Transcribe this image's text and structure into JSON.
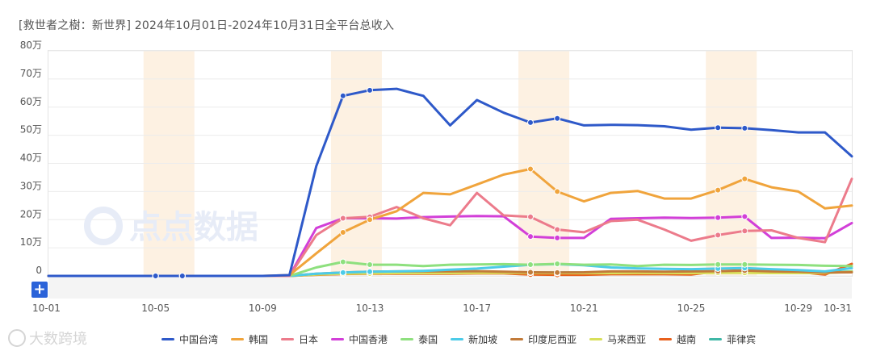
{
  "title": "[救世者之樹：新世界] 2024年10月01日-2024年10月31日全平台总收入",
  "watermark_center": "点点数据",
  "watermark_bottom": "大数跨境",
  "plus_button": "+",
  "chart_data": {
    "type": "line",
    "x_labels": [
      "10-01",
      "10-05",
      "10-09",
      "10-13",
      "10-17",
      "10-21",
      "10-25",
      "10-29",
      "10-31"
    ],
    "y_ticks": [
      "0",
      "10万",
      "20万",
      "30万",
      "40万",
      "50万",
      "60万",
      "70万",
      "80万"
    ],
    "ylim": [
      0,
      80
    ],
    "unit": "万",
    "grid": true,
    "legend_position": "bottom",
    "highlight_bands": [
      [
        5,
        6
      ],
      [
        12,
        13
      ],
      [
        19,
        20
      ],
      [
        26,
        27
      ]
    ],
    "series": [
      {
        "name": "中国台湾",
        "color": "#2e59c9",
        "values": [
          0,
          0,
          0,
          0,
          0,
          0,
          0,
          0,
          0,
          0.3,
          39,
          64,
          66,
          66.5,
          64,
          53.5,
          62.5,
          58,
          54.5,
          56,
          53.5,
          53.7,
          53.6,
          53.2,
          52,
          52.7,
          52.5,
          51.8,
          51,
          51,
          42.5
        ]
      },
      {
        "name": "韩国",
        "color": "#f0a43c",
        "values": [
          0,
          0,
          0,
          0,
          0,
          0,
          0,
          0,
          0,
          0.3,
          8,
          15.5,
          20,
          23,
          29.5,
          29,
          32.5,
          36,
          38,
          30,
          26.5,
          29.5,
          30.2,
          27.5,
          27.5,
          30.5,
          34.5,
          31.5,
          30,
          24,
          25
        ]
      },
      {
        "name": "日本",
        "color": "#ec7b8b",
        "values": [
          0,
          0,
          0,
          0,
          0,
          0,
          0,
          0,
          0,
          0,
          14.5,
          20.5,
          21,
          24.5,
          20.5,
          18,
          29.5,
          21.5,
          21,
          16.5,
          15.5,
          19.5,
          20,
          16.5,
          12.5,
          14.5,
          16,
          16.2,
          13.5,
          12,
          34.5
        ]
      },
      {
        "name": "中国香港",
        "color": "#d23fd8",
        "values": [
          0,
          0,
          0,
          0,
          0,
          0,
          0,
          0,
          0,
          0,
          17,
          20.5,
          20.5,
          20.4,
          20.9,
          21.1,
          21.3,
          21.2,
          14,
          13.5,
          13.5,
          20.3,
          20.5,
          20.7,
          20.6,
          20.7,
          21.1,
          13.5,
          13.6,
          13.4,
          18.8
        ]
      },
      {
        "name": "泰国",
        "color": "#8ee07e",
        "values": [
          0,
          0,
          0,
          0,
          0,
          0,
          0,
          0,
          0,
          0,
          3,
          5,
          4,
          4,
          3.5,
          4,
          4.1,
          4.2,
          4,
          4.3,
          4,
          4.1,
          3.5,
          4,
          3.9,
          4.1,
          4.1,
          4,
          3.9,
          3.6,
          3.5
        ]
      },
      {
        "name": "新加坡",
        "color": "#4ccbe8",
        "values": [
          0,
          0,
          0,
          0,
          0,
          0,
          0,
          0,
          0,
          0,
          0.8,
          1.2,
          1.5,
          1.6,
          1.8,
          2.2,
          2.6,
          3.3,
          4,
          4.2,
          3.8,
          3,
          2.7,
          2.5,
          2.4,
          2.6,
          2.8,
          2.4,
          2.1,
          1.6,
          2.8
        ]
      },
      {
        "name": "印度尼西亚",
        "color": "#c27b3a",
        "values": [
          0,
          0,
          0,
          0,
          0,
          0,
          0,
          0,
          0,
          0,
          0.8,
          1.2,
          1.5,
          1.6,
          1.6,
          1.6,
          1.7,
          1.5,
          1.3,
          1.2,
          1.3,
          1.6,
          1.6,
          1.5,
          1.6,
          1.7,
          1.9,
          1.6,
          1.5,
          1.2,
          1.3
        ]
      },
      {
        "name": "马来西亚",
        "color": "#d8e05a",
        "values": [
          0,
          0,
          0,
          0,
          0,
          0,
          0,
          0,
          0,
          0,
          0.5,
          0.8,
          0.9,
          1,
          1,
          1,
          1.1,
          1.1,
          1.1,
          1,
          1,
          1,
          1.1,
          1,
          1,
          1.1,
          1.1,
          1,
          1,
          1,
          1.5
        ]
      },
      {
        "name": "越南",
        "color": "#e8601c",
        "values": [
          0,
          0,
          0,
          0,
          0,
          0,
          0,
          0,
          0,
          0,
          0.4,
          0.7,
          0.8,
          0.8,
          0.8,
          0.8,
          0.9,
          0.9,
          0.5,
          0.4,
          0.4,
          0.6,
          0.6,
          0.6,
          0.5,
          1.6,
          2,
          1.6,
          1.4,
          0.5,
          4.3
        ]
      },
      {
        "name": "菲律宾",
        "color": "#3fb7a6",
        "values": [
          0,
          0,
          0,
          0,
          0,
          0,
          0,
          0,
          0,
          0,
          0.6,
          0.9,
          1.2,
          1.2,
          1.2,
          1.3,
          1.3,
          1.3,
          1.2,
          1.2,
          1.2,
          1.3,
          1.3,
          1.3,
          1.3,
          1.3,
          1.3,
          1.3,
          1.2,
          1.2,
          1.6
        ]
      }
    ]
  }
}
